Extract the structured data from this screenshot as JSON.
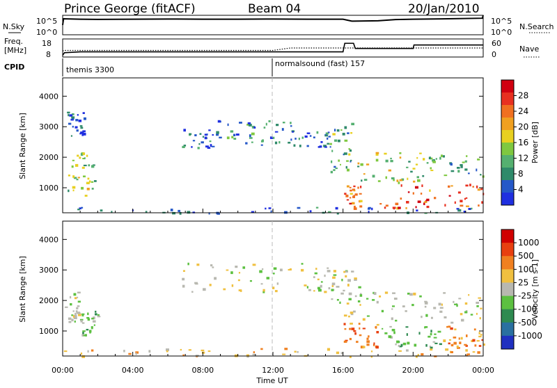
{
  "header": {
    "station": "Prince George (fitACF)",
    "beam": "Beam 04",
    "date": "20/Jan/2010"
  },
  "nsky_panel": {
    "label": "N.Sky",
    "right_label": "N.Search",
    "left_ticks": [
      "10^5",
      "10^0"
    ],
    "right_ticks": [
      "10^5",
      "10^0"
    ]
  },
  "freq_panel": {
    "label_line1": "Freq.",
    "label_line2": "[MHz]",
    "right_label": "Nave",
    "left_ticks": [
      "18",
      "8"
    ],
    "right_ticks": [
      "60",
      "0"
    ]
  },
  "cpid": {
    "label": "CPID",
    "segments": [
      {
        "start_hour": 0.0,
        "text": "themis 3300"
      },
      {
        "start_hour": 12.0,
        "text": "normalsound (fast) 157"
      }
    ]
  },
  "time_axis": {
    "label": "Time UT",
    "ticks": [
      "00:00",
      "04:00",
      "08:00",
      "12:00",
      "16:00",
      "20:00",
      "00:00"
    ]
  },
  "power_panel": {
    "ylabel": "Slant Range [km]",
    "yticks": [
      "4000",
      "3000",
      "2000",
      "1000"
    ],
    "colorbar_label": "Power [dB]",
    "colorbar_ticks": [
      "28",
      "24",
      "20",
      "16",
      "12",
      "8",
      "4"
    ],
    "colors": [
      "#1f2fe0",
      "#2558c8",
      "#2f8a6a",
      "#55b070",
      "#7fc840",
      "#e8d020",
      "#f0a020",
      "#f07020",
      "#e83020",
      "#d00010"
    ]
  },
  "velocity_panel": {
    "ylabel": "Slant Range [km]",
    "yticks": [
      "4000",
      "3000",
      "2000",
      "1000"
    ],
    "colorbar_label": "Velocity [m s-1]",
    "colorbar_ticks": [
      "1000",
      "500",
      "100",
      "25",
      "-25",
      "-100",
      "-500",
      "-1000"
    ],
    "colors": [
      "#2030c0",
      "#2a70a0",
      "#2e8a50",
      "#5cc040",
      "#b8b8b0",
      "#f0c040",
      "#f08020",
      "#e84010",
      "#d00000"
    ]
  },
  "chart_data": [
    {
      "type": "line",
      "title": "N.Sky / N.Search",
      "x": [
        0,
        0.05,
        1,
        2,
        4,
        6,
        8,
        10,
        12,
        14,
        16,
        16.5,
        18,
        19,
        20,
        22,
        23.95,
        24
      ],
      "series": [
        {
          "name": "N.Sky",
          "values": [
            0.5,
            0.82,
            0.8,
            0.79,
            0.8,
            0.81,
            0.8,
            0.8,
            0.81,
            0.8,
            0.8,
            0.7,
            0.72,
            0.78,
            0.8,
            0.82,
            0.85,
            1.0
          ]
        }
      ]
    },
    {
      "type": "line",
      "title": "Freq. [MHz] / Nave",
      "x": [
        0,
        0.1,
        1,
        4,
        8,
        12,
        13,
        16,
        16.1,
        16.6,
        16.7,
        20,
        20.05,
        24
      ],
      "series": [
        {
          "name": "Freq.",
          "values": [
            9.0,
            10.5,
            11.0,
            11.0,
            11.0,
            11.0,
            11.0,
            11.0,
            16.0,
            16.0,
            13.0,
            13.0,
            15.0,
            15.0
          ]
        },
        {
          "name": "Nave",
          "values": [
            20,
            22,
            22,
            22,
            22,
            22,
            30,
            30,
            30,
            30,
            30,
            30,
            30,
            30
          ]
        }
      ]
    },
    {
      "type": "heatmap",
      "title": "Power [dB]",
      "xlabel": "Time UT",
      "ylabel": "Slant Range [km]",
      "xlim": [
        0,
        24
      ],
      "ylim": [
        180,
        4600
      ],
      "zlim": [
        0,
        30
      ],
      "regions": [
        {
          "t0": 0.1,
          "t1": 2.0,
          "r0": 750,
          "r1": 2200,
          "level": 4
        },
        {
          "t0": 0.2,
          "t1": 1.2,
          "r0": 2600,
          "r1": 3500,
          "level": 1
        },
        {
          "t0": 6.8,
          "t1": 8.8,
          "r0": 2300,
          "r1": 3000,
          "level": 1
        },
        {
          "t0": 8.8,
          "t1": 13.0,
          "r0": 2400,
          "r1": 3250,
          "level": 2
        },
        {
          "t0": 13.0,
          "t1": 15.2,
          "r0": 2350,
          "r1": 2900,
          "level": 1
        },
        {
          "t0": 15.2,
          "t1": 16.5,
          "r0": 1400,
          "r1": 3200,
          "level": 3
        },
        {
          "t0": 16.0,
          "t1": 17.0,
          "r0": 350,
          "r1": 1100,
          "level": 7
        },
        {
          "t0": 16.8,
          "t1": 20.5,
          "r0": 1200,
          "r1": 2200,
          "level": 4
        },
        {
          "t0": 18.0,
          "t1": 24.0,
          "r0": 350,
          "r1": 1200,
          "level": 7
        },
        {
          "t0": 20.5,
          "t1": 24.0,
          "r0": 1400,
          "r1": 2100,
          "level": 3
        },
        {
          "t0": 0.0,
          "t1": 24.0,
          "r0": 180,
          "r1": 380,
          "level": 1
        }
      ]
    },
    {
      "type": "heatmap",
      "title": "Velocity [m s-1]",
      "xlabel": "Time UT",
      "ylabel": "Slant Range [km]",
      "xlim": [
        0,
        24
      ],
      "ylim": [
        180,
        4600
      ],
      "regions": [
        {
          "t0": 0.1,
          "t1": 1.0,
          "r0": 1300,
          "r1": 2300,
          "category": 4
        },
        {
          "t0": 1.0,
          "t1": 2.0,
          "r0": 800,
          "r1": 1700,
          "category": 3
        },
        {
          "t0": 6.8,
          "t1": 15.5,
          "r0": 2300,
          "r1": 3250,
          "category": 4
        },
        {
          "t0": 15.2,
          "t1": 17.0,
          "r0": 1500,
          "r1": 3000,
          "category": 4
        },
        {
          "t0": 16.0,
          "t1": 18.0,
          "r0": 450,
          "r1": 1300,
          "category": 6
        },
        {
          "t0": 17.0,
          "t1": 24.0,
          "r0": 1300,
          "r1": 2300,
          "category": 4
        },
        {
          "t0": 18.0,
          "t1": 21.5,
          "r0": 450,
          "r1": 1200,
          "category": 3
        },
        {
          "t0": 21.5,
          "t1": 24.0,
          "r0": 450,
          "r1": 1200,
          "category": 6
        },
        {
          "t0": 0.0,
          "t1": 24.0,
          "r0": 180,
          "r1": 450,
          "category": 5
        }
      ]
    }
  ]
}
